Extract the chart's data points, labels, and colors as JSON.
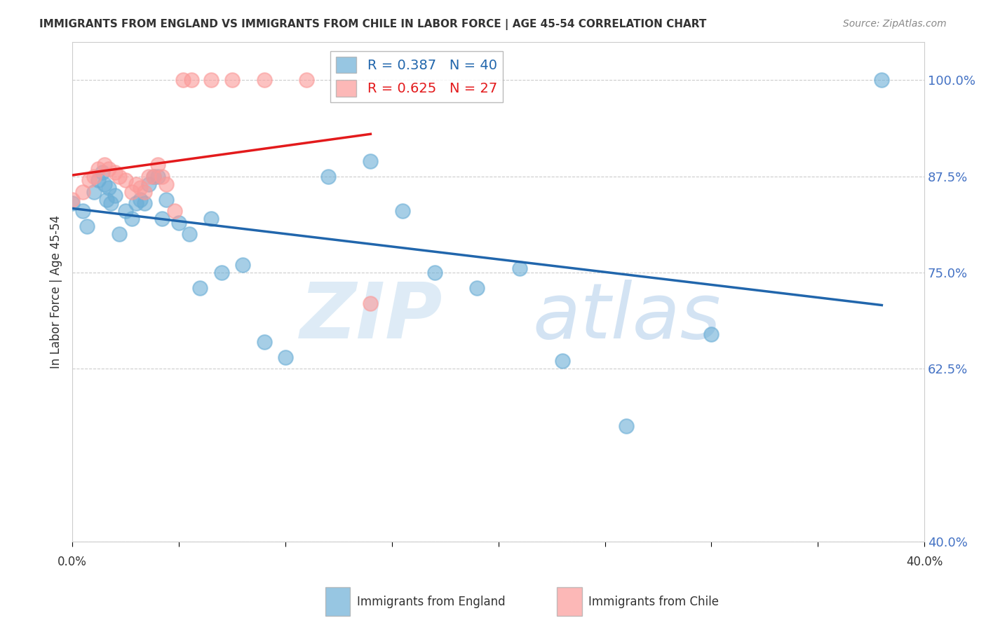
{
  "title": "IMMIGRANTS FROM ENGLAND VS IMMIGRANTS FROM CHILE IN LABOR FORCE | AGE 45-54 CORRELATION CHART",
  "source": "Source: ZipAtlas.com",
  "ylabel": "In Labor Force | Age 45-54",
  "yticks": [
    0.4,
    0.625,
    0.75,
    0.875,
    1.0
  ],
  "ytick_labels": [
    "40.0%",
    "62.5%",
    "75.0%",
    "87.5%",
    "100.0%"
  ],
  "xlim": [
    0.0,
    0.4
  ],
  "ylim": [
    0.4,
    1.05
  ],
  "legend_r_england": "R = 0.387",
  "legend_n_england": "N = 40",
  "legend_r_chile": "R = 0.625",
  "legend_n_chile": "N = 27",
  "england_color": "#6baed6",
  "chile_color": "#fb9a99",
  "england_line_color": "#2166ac",
  "chile_line_color": "#e31a1c",
  "england_scatter_x": [
    0.0,
    0.005,
    0.007,
    0.01,
    0.012,
    0.014,
    0.015,
    0.016,
    0.017,
    0.018,
    0.02,
    0.022,
    0.025,
    0.028,
    0.03,
    0.032,
    0.034,
    0.036,
    0.038,
    0.04,
    0.042,
    0.044,
    0.05,
    0.055,
    0.06,
    0.065,
    0.07,
    0.08,
    0.09,
    0.1,
    0.12,
    0.14,
    0.155,
    0.17,
    0.19,
    0.21,
    0.23,
    0.26,
    0.3,
    0.38
  ],
  "england_scatter_y": [
    0.84,
    0.83,
    0.81,
    0.855,
    0.87,
    0.88,
    0.865,
    0.845,
    0.86,
    0.84,
    0.85,
    0.8,
    0.83,
    0.82,
    0.84,
    0.845,
    0.84,
    0.865,
    0.875,
    0.875,
    0.82,
    0.845,
    0.815,
    0.8,
    0.73,
    0.82,
    0.75,
    0.76,
    0.66,
    0.64,
    0.875,
    0.895,
    0.83,
    0.75,
    0.73,
    0.755,
    0.635,
    0.55,
    0.67,
    1.0
  ],
  "chile_scatter_x": [
    0.0,
    0.005,
    0.008,
    0.01,
    0.012,
    0.015,
    0.017,
    0.02,
    0.022,
    0.025,
    0.028,
    0.03,
    0.032,
    0.034,
    0.036,
    0.038,
    0.04,
    0.042,
    0.044,
    0.048,
    0.052,
    0.056,
    0.065,
    0.075,
    0.09,
    0.11,
    0.14
  ],
  "chile_scatter_y": [
    0.845,
    0.855,
    0.87,
    0.875,
    0.885,
    0.89,
    0.885,
    0.88,
    0.875,
    0.87,
    0.855,
    0.865,
    0.86,
    0.855,
    0.875,
    0.875,
    0.89,
    0.875,
    0.865,
    0.83,
    1.0,
    1.0,
    1.0,
    1.0,
    1.0,
    1.0,
    0.71
  ],
  "watermark_zip": "ZIP",
  "watermark_atlas": "atlas",
  "background_color": "#ffffff",
  "grid_color": "#cccccc"
}
